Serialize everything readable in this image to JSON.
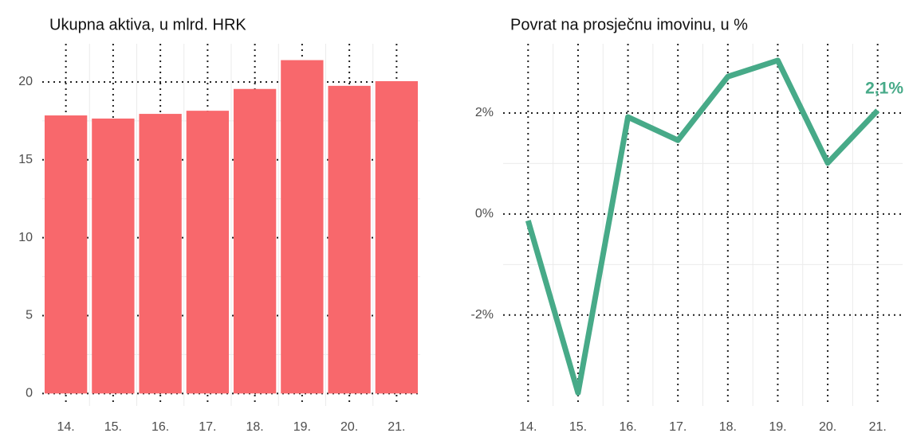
{
  "chart_data": [
    {
      "type": "bar",
      "title": "Ukupna aktiva, u mlrd. HRK",
      "categories": [
        "14.",
        "15.",
        "16.",
        "17.",
        "18.",
        "19.",
        "20.",
        "21."
      ],
      "values": [
        17.85,
        17.65,
        17.95,
        18.15,
        19.55,
        21.4,
        19.75,
        20.05
      ],
      "color": "#f8686c",
      "ylim": [
        -0.8,
        22.45
      ],
      "yticks": [
        0,
        5,
        10,
        15,
        20
      ],
      "grid": true
    },
    {
      "type": "line",
      "title": "Povrat na prosječnu imovinu, u %",
      "categories": [
        "14.",
        "15.",
        "16.",
        "17.",
        "18.",
        "19.",
        "20.",
        "21."
      ],
      "values": [
        -0.13,
        -3.54,
        1.92,
        1.46,
        2.72,
        3.04,
        1.01,
        2.05
      ],
      "value_labels": [
        null,
        null,
        null,
        null,
        null,
        null,
        null,
        "2,1%"
      ],
      "color": "#47aa88",
      "ylim": [
        -3.8,
        3.37
      ],
      "yticks": [
        {
          "value": -2,
          "label": "-2%"
        },
        {
          "value": 0,
          "label": "0%"
        },
        {
          "value": 2,
          "label": "2%"
        }
      ],
      "grid": true
    }
  ]
}
